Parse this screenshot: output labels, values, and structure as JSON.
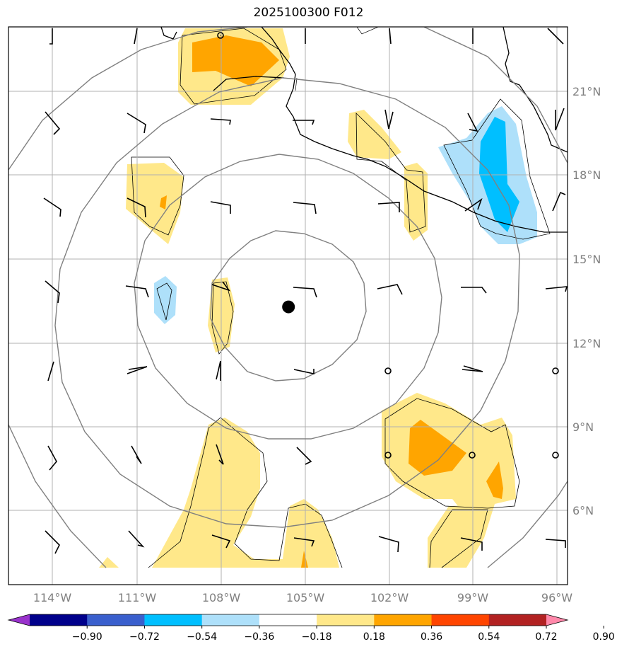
{
  "title": "2025100300 F012",
  "map": {
    "lon_ticks": [
      {
        "label": "114°W",
        "value": -114
      },
      {
        "label": "111°W",
        "value": -111
      },
      {
        "label": "108°W",
        "value": -108
      },
      {
        "label": "105°W",
        "value": -105
      },
      {
        "label": "102°W",
        "value": -102
      },
      {
        "label": "99°W",
        "value": -99
      },
      {
        "label": "96°W",
        "value": -96
      }
    ],
    "lat_ticks": [
      {
        "label": "21°N",
        "value": 21
      },
      {
        "label": "18°N",
        "value": 18
      },
      {
        "label": "15°N",
        "value": 15
      },
      {
        "label": "12°N",
        "value": 12
      },
      {
        "label": "9°N",
        "value": 9
      },
      {
        "label": "6°N",
        "value": 6
      }
    ],
    "storm_center": {
      "lon": -105.6,
      "lat": 13.3
    },
    "range_rings_deg": [
      3,
      6,
      9,
      12
    ],
    "colors": {
      "yellow": "#ffe88a",
      "orange": "#ffa500",
      "light_blue": "#aee0fa",
      "blue": "#00bfff",
      "grid": "#b0b0b0",
      "ring": "#808080"
    }
  },
  "colorbar": {
    "colors": [
      "#9932cc",
      "#00008b",
      "#3a5fcd",
      "#00bfff",
      "#aee0fa",
      "#ffffff",
      "#ffe88a",
      "#ffa500",
      "#ff4500",
      "#b22222",
      "#ff88aa"
    ],
    "labels": [
      "−0.90",
      "−0.72",
      "−0.54",
      "−0.36",
      "−0.18",
      "0.18",
      "0.36",
      "0.54",
      "0.72",
      "0.90"
    ]
  }
}
